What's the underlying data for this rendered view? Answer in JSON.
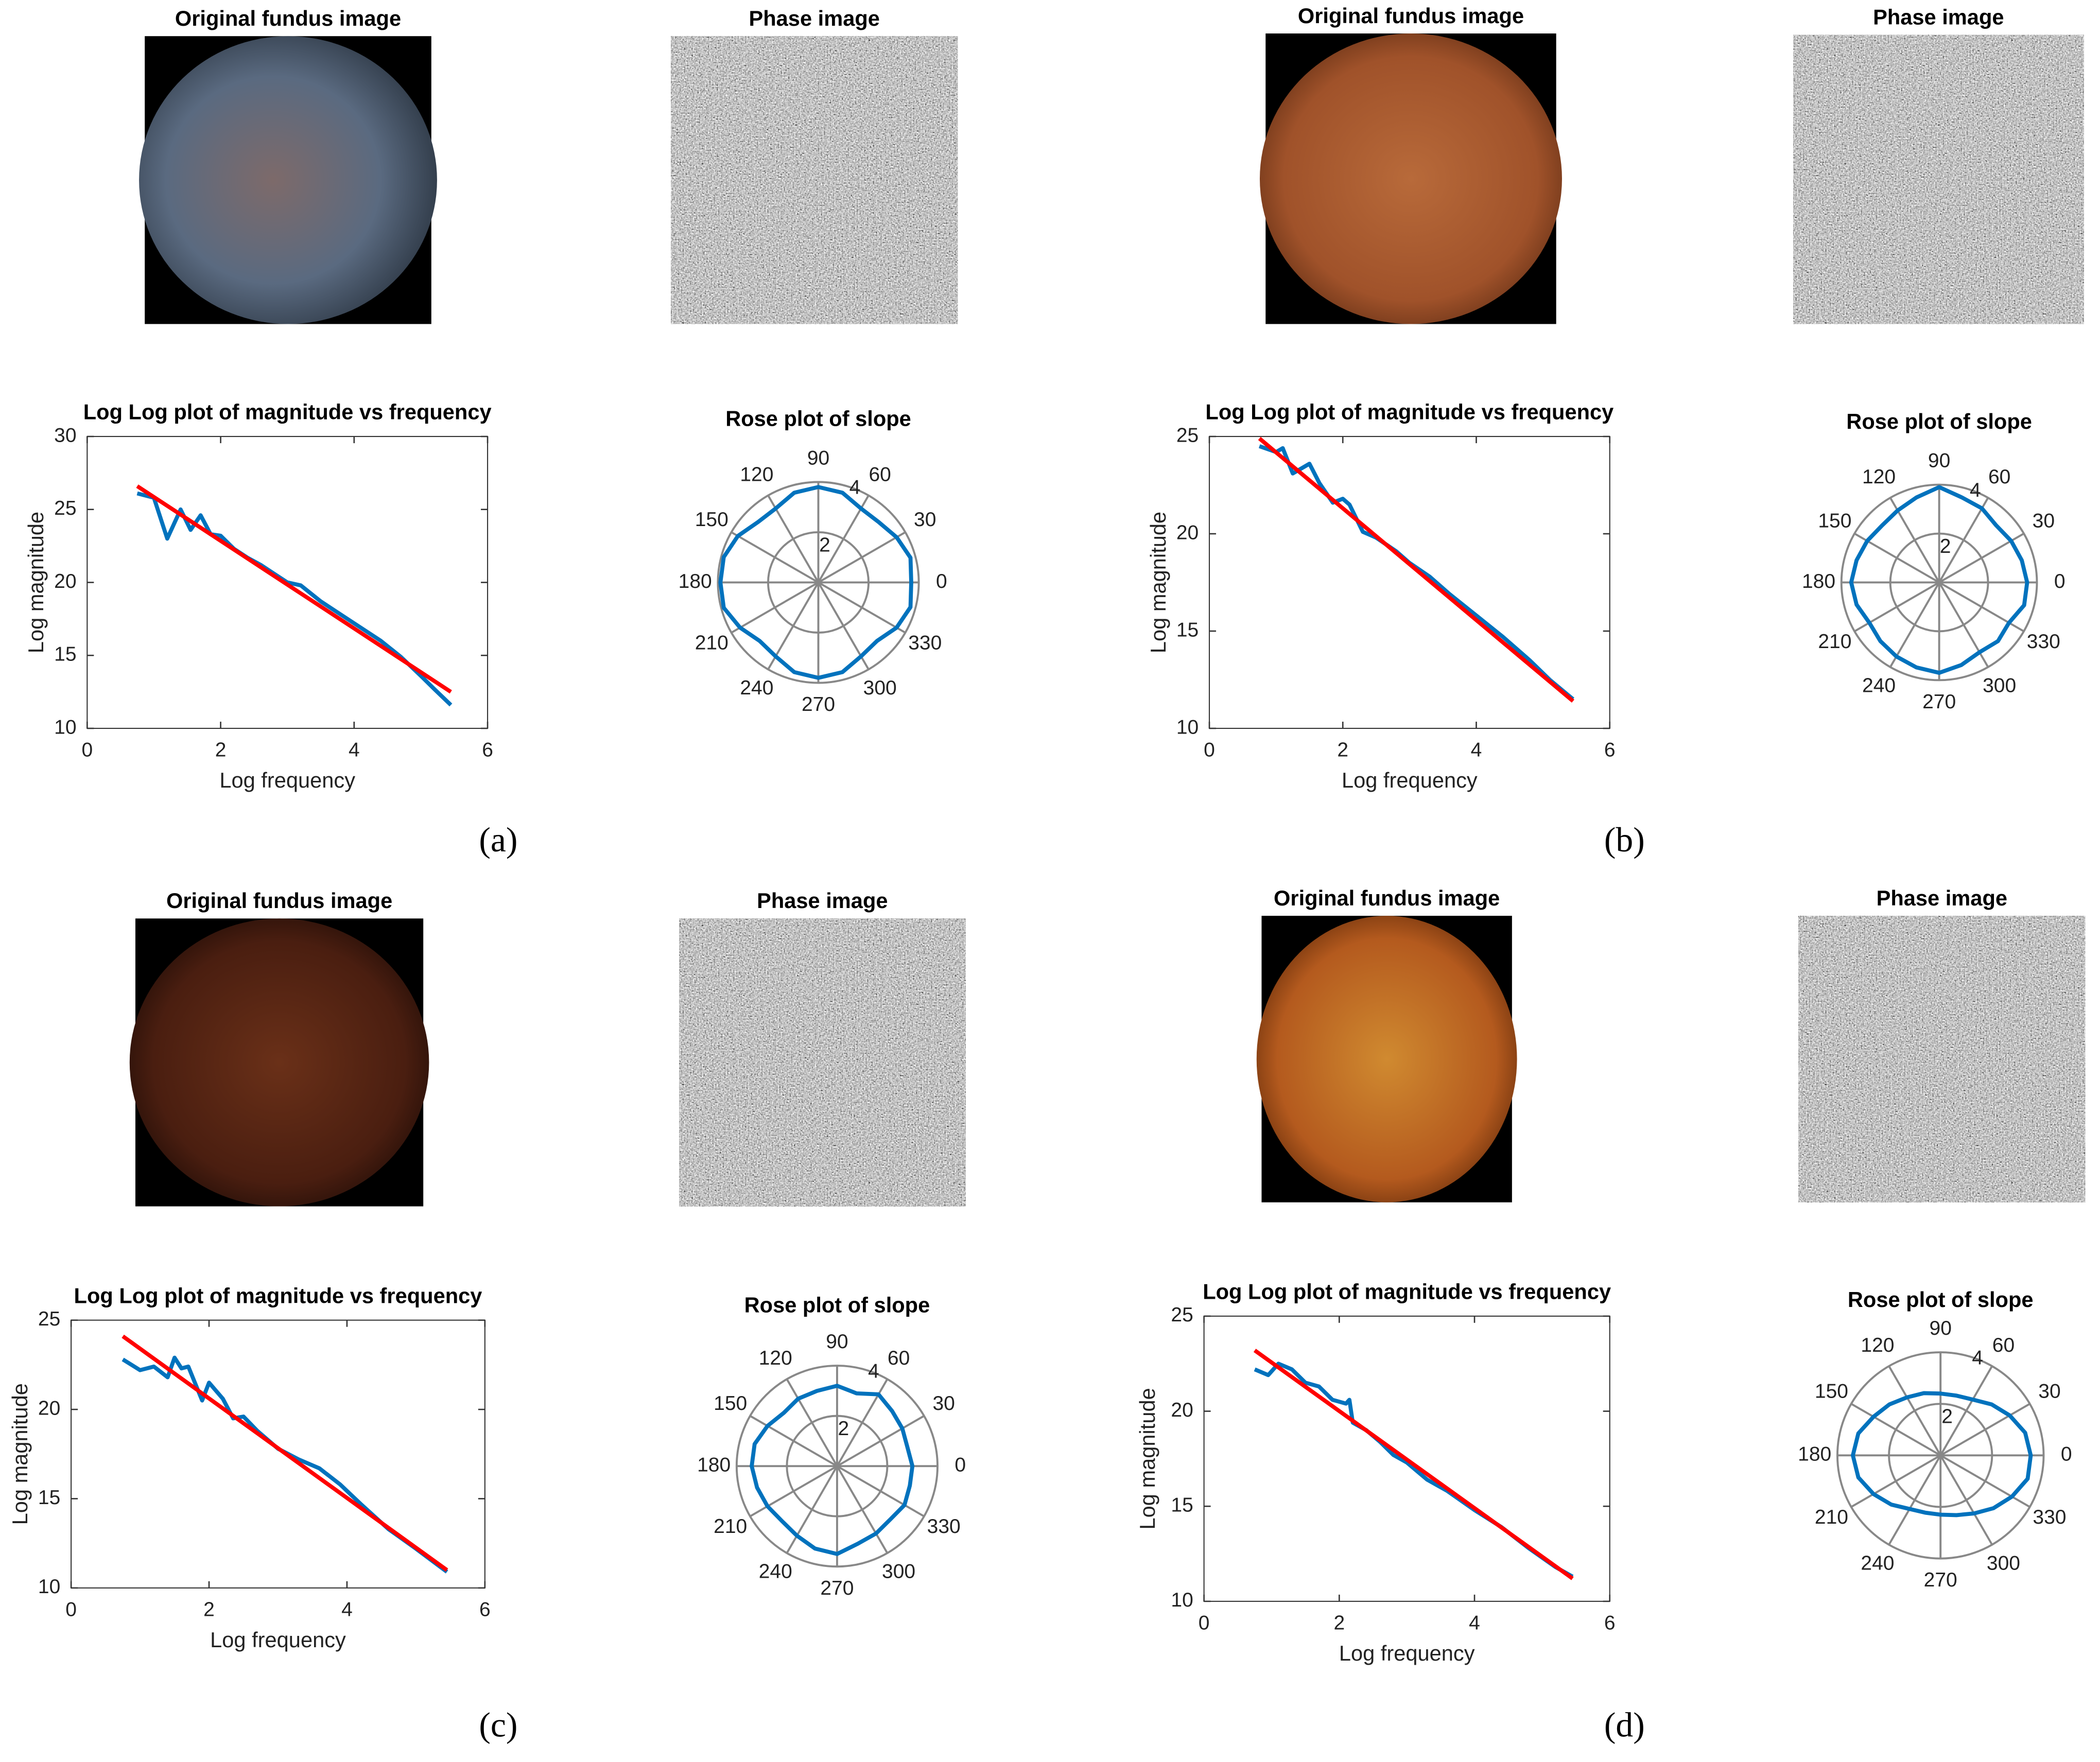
{
  "panels": [
    {
      "label": "(a)",
      "fundus_title": "Original fundus image",
      "phase_title": "Phase image"
    },
    {
      "label": "(b)",
      "fundus_title": "Original fundus image",
      "phase_title": "Phase image"
    },
    {
      "label": "(c)",
      "fundus_title": "Original fundus image",
      "phase_title": "Phase image"
    },
    {
      "label": "(d)",
      "fundus_title": "Original fundus image",
      "phase_title": "Phase image"
    }
  ],
  "chart_data": [
    {
      "type": "line",
      "title": "Log Log plot of magnitude vs frequency",
      "x_label": "Log frequency",
      "y_label": "Log magnitude",
      "xlim": [
        0,
        6
      ],
      "xticks": [
        0,
        2,
        4,
        6
      ],
      "ylim": [
        10,
        30
      ],
      "yticks": [
        10,
        15,
        20,
        25,
        30
      ],
      "series": [
        {
          "color": "#0072bd",
          "x": [
            0.75,
            1.0,
            1.2,
            1.4,
            1.55,
            1.7,
            1.85,
            2.0,
            2.2,
            2.4,
            2.6,
            2.8,
            3.0,
            3.2,
            3.5,
            3.8,
            4.1,
            4.4,
            4.7,
            5.0,
            5.2,
            5.45
          ],
          "values": [
            26.1,
            25.8,
            23.0,
            25.0,
            23.6,
            24.6,
            23.3,
            23.2,
            22.3,
            21.7,
            21.2,
            20.6,
            20.0,
            19.8,
            18.7,
            17.8,
            16.9,
            16.0,
            14.9,
            13.6,
            12.7,
            11.6
          ]
        },
        {
          "color": "#ff0000",
          "x": [
            0.75,
            5.45
          ],
          "values": [
            26.6,
            12.5
          ]
        }
      ]
    },
    {
      "type": "polar",
      "title": "Rose plot of slope",
      "rlim": [
        0,
        4
      ],
      "rticks": [
        2,
        4
      ],
      "thetaticks": [
        0,
        30,
        60,
        90,
        120,
        150,
        180,
        210,
        240,
        270,
        300,
        330
      ],
      "color": "#0072bd",
      "theta": [
        0,
        15,
        30,
        45,
        60,
        75,
        90,
        105,
        120,
        135,
        150,
        165,
        180,
        195,
        210,
        225,
        240,
        255,
        270,
        285,
        300,
        315,
        330,
        345
      ],
      "values": [
        3.7,
        3.8,
        3.6,
        3.4,
        3.4,
        3.7,
        3.8,
        3.7,
        3.4,
        3.4,
        3.7,
        3.9,
        3.9,
        3.9,
        3.6,
        3.3,
        3.4,
        3.7,
        3.8,
        3.7,
        3.4,
        3.3,
        3.6,
        3.8
      ]
    },
    {
      "type": "line",
      "title": "Log Log plot of magnitude vs frequency",
      "x_label": "Log frequency",
      "y_label": "Log magnitude",
      "xlim": [
        0,
        6
      ],
      "xticks": [
        0,
        2,
        4,
        6
      ],
      "ylim": [
        10,
        25
      ],
      "yticks": [
        10,
        15,
        20,
        25
      ],
      "series": [
        {
          "color": "#0072bd",
          "x": [
            0.75,
            1.0,
            1.1,
            1.25,
            1.5,
            1.65,
            1.85,
            2.0,
            2.1,
            2.3,
            2.5,
            2.8,
            3.0,
            3.3,
            3.6,
            4.0,
            4.4,
            4.8,
            5.1,
            5.45
          ],
          "values": [
            24.5,
            24.2,
            24.4,
            23.1,
            23.6,
            22.6,
            21.6,
            21.8,
            21.5,
            20.1,
            19.8,
            19.1,
            18.5,
            17.8,
            16.9,
            15.8,
            14.7,
            13.5,
            12.5,
            11.5
          ]
        },
        {
          "color": "#ff0000",
          "x": [
            0.75,
            5.45
          ],
          "values": [
            24.9,
            11.4
          ]
        }
      ]
    },
    {
      "type": "polar",
      "title": "Rose plot of slope",
      "rlim": [
        0,
        4
      ],
      "rticks": [
        2,
        4
      ],
      "thetaticks": [
        0,
        30,
        60,
        90,
        120,
        150,
        180,
        210,
        240,
        270,
        300,
        330
      ],
      "color": "#0072bd",
      "theta": [
        0,
        15,
        30,
        45,
        60,
        75,
        90,
        105,
        120,
        135,
        150,
        165,
        180,
        195,
        210,
        225,
        240,
        255,
        270,
        285,
        300,
        315,
        330,
        345
      ],
      "values": [
        3.6,
        3.5,
        3.4,
        3.3,
        3.5,
        3.6,
        3.9,
        3.6,
        3.4,
        3.3,
        3.4,
        3.5,
        3.6,
        3.5,
        3.3,
        3.4,
        3.5,
        3.6,
        3.7,
        3.5,
        3.3,
        3.4,
        3.3,
        3.6
      ]
    },
    {
      "type": "line",
      "title": "Log Log plot of magnitude vs frequency",
      "x_label": "Log frequency",
      "y_label": "Log magnitude",
      "xlim": [
        0,
        6
      ],
      "xticks": [
        0,
        2,
        4,
        6
      ],
      "ylim": [
        10,
        25
      ],
      "yticks": [
        10,
        15,
        20,
        25
      ],
      "series": [
        {
          "color": "#0072bd",
          "x": [
            0.75,
            1.0,
            1.2,
            1.4,
            1.5,
            1.6,
            1.7,
            1.9,
            2.0,
            2.2,
            2.35,
            2.5,
            2.7,
            3.0,
            3.3,
            3.6,
            3.9,
            4.2,
            4.6,
            5.0,
            5.45
          ],
          "values": [
            22.8,
            22.2,
            22.4,
            21.8,
            22.9,
            22.3,
            22.4,
            20.5,
            21.5,
            20.6,
            19.5,
            19.6,
            18.8,
            17.8,
            17.2,
            16.7,
            15.8,
            14.7,
            13.3,
            12.2,
            10.9
          ]
        },
        {
          "color": "#ff0000",
          "x": [
            0.75,
            5.45
          ],
          "values": [
            24.1,
            11.0
          ]
        }
      ]
    },
    {
      "type": "polar",
      "title": "Rose plot of slope",
      "rlim": [
        0,
        4
      ],
      "rticks": [
        2,
        4
      ],
      "thetaticks": [
        0,
        30,
        60,
        90,
        120,
        150,
        180,
        210,
        240,
        270,
        300,
        330
      ],
      "color": "#0072bd",
      "theta": [
        0,
        15,
        30,
        45,
        60,
        75,
        90,
        105,
        120,
        135,
        150,
        165,
        180,
        195,
        210,
        225,
        240,
        255,
        270,
        285,
        300,
        315,
        330,
        345
      ],
      "values": [
        3.0,
        2.9,
        3.0,
        3.1,
        3.3,
        3.0,
        3.2,
        3.1,
        3.1,
        3.0,
        3.2,
        3.4,
        3.4,
        3.3,
        3.2,
        3.1,
        3.2,
        3.4,
        3.5,
        3.2,
        3.1,
        3.0,
        3.1,
        3.0
      ]
    },
    {
      "type": "line",
      "title": "Log Log plot of magnitude vs frequency",
      "x_label": "Log frequency",
      "y_label": "Log magnitude",
      "xlim": [
        0,
        6
      ],
      "xticks": [
        0,
        2,
        4,
        6
      ],
      "ylim": [
        10,
        25
      ],
      "yticks": [
        10,
        15,
        20,
        25
      ],
      "series": [
        {
          "color": "#0072bd",
          "x": [
            0.75,
            0.95,
            1.1,
            1.3,
            1.5,
            1.7,
            1.9,
            2.1,
            2.15,
            2.2,
            2.4,
            2.6,
            2.8,
            3.0,
            3.3,
            3.6,
            4.0,
            4.4,
            4.8,
            5.2,
            5.45
          ],
          "values": [
            22.2,
            21.9,
            22.5,
            22.2,
            21.5,
            21.3,
            20.6,
            20.4,
            20.6,
            19.4,
            19.0,
            18.4,
            17.7,
            17.3,
            16.4,
            15.8,
            14.8,
            13.9,
            12.8,
            11.8,
            11.3
          ]
        },
        {
          "color": "#ff0000",
          "x": [
            0.75,
            5.45
          ],
          "values": [
            23.2,
            11.2
          ]
        }
      ]
    },
    {
      "type": "polar",
      "title": "Rose plot of slope",
      "rlim": [
        0,
        4
      ],
      "rticks": [
        2,
        4
      ],
      "thetaticks": [
        0,
        30,
        60,
        90,
        120,
        150,
        180,
        210,
        240,
        270,
        300,
        330
      ],
      "color": "#0072bd",
      "theta": [
        0,
        15,
        30,
        45,
        60,
        75,
        90,
        105,
        120,
        135,
        150,
        165,
        180,
        195,
        210,
        225,
        240,
        255,
        270,
        285,
        300,
        315,
        330,
        345
      ],
      "values": [
        3.5,
        3.4,
        3.1,
        2.8,
        2.5,
        2.4,
        2.4,
        2.5,
        2.6,
        2.8,
        3.0,
        3.3,
        3.4,
        3.3,
        3.0,
        2.7,
        2.4,
        2.3,
        2.3,
        2.4,
        2.6,
        2.9,
        3.2,
        3.5
      ]
    }
  ]
}
